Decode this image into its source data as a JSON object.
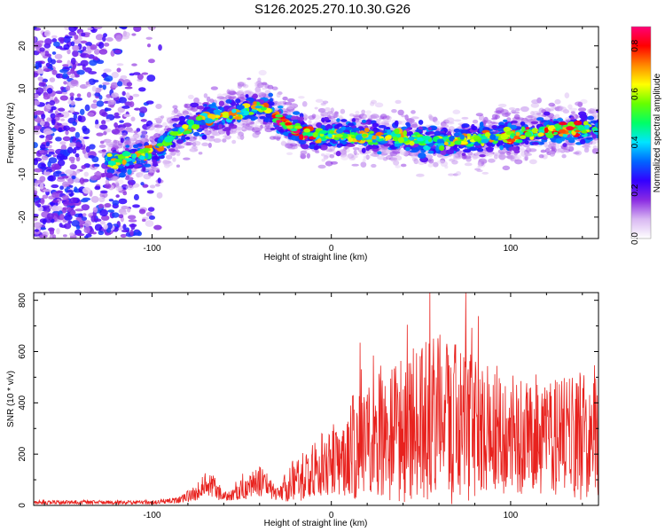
{
  "title": "S126.2025.270.10.30.G26",
  "colors": {
    "snr_line": "#e8221e",
    "axis": "#000000",
    "background": "#ffffff"
  },
  "chart_data": [
    {
      "type": "heatmap",
      "title": "",
      "xlabel": "Height of straight line (km)",
      "ylabel": "Frequency (Hz)",
      "xlim": [
        -166,
        149
      ],
      "ylim": [
        -25,
        24.5
      ],
      "x_ticks": [
        -100,
        0,
        100
      ],
      "x_tick_labels": [
        "-100",
        "0",
        "100"
      ],
      "y_ticks": [
        -20,
        -10,
        0,
        10,
        20
      ],
      "y_tick_labels": [
        "-20",
        "-10",
        "0",
        "10",
        "20"
      ],
      "ridge": {
        "description_points_x": [
          -120,
          -100,
          -85,
          -70,
          -55,
          -40,
          -35,
          -30,
          -20,
          -10,
          0,
          20,
          40,
          60,
          80,
          100,
          120,
          140,
          149
        ],
        "description_points_y": [
          -7,
          -5,
          0,
          3,
          4,
          6,
          5,
          3,
          0.5,
          -1,
          -0.5,
          -1,
          -1.5,
          -2.5,
          -2,
          -1,
          0,
          0.5,
          0.8
        ]
      },
      "noise_region_x": [
        -166,
        -95
      ],
      "colorbar": {
        "label": "Normalized spectral amplitude",
        "range": [
          0.0,
          0.88
        ],
        "ticks": [
          0.0,
          0.2,
          0.4,
          0.6,
          0.8
        ],
        "tick_labels": [
          "0.0",
          "0.2",
          "0.4",
          "0.6",
          "0.8"
        ],
        "colors": [
          "#ffffff",
          "#d9b8f2",
          "#8a2be2",
          "#3300ff",
          "#0066ff",
          "#00e5ff",
          "#00ff66",
          "#66ff00",
          "#ffff00",
          "#ff8800",
          "#ff0000",
          "#ff0077"
        ]
      }
    },
    {
      "type": "line",
      "title": "",
      "xlabel": "Height of straight line (km)",
      "ylabel": "SNR (10 * v/v)",
      "xlim": [
        -166,
        149
      ],
      "ylim": [
        0,
        830
      ],
      "x_ticks": [
        -100,
        0,
        100
      ],
      "x_tick_labels": [
        "-100",
        "0",
        "100"
      ],
      "y_ticks": [
        0,
        200,
        400,
        600,
        800
      ],
      "y_tick_labels": [
        "0",
        "200",
        "400",
        "600",
        "800"
      ],
      "series": [
        {
          "name": "SNR",
          "envelope_x": [
            -166,
            -100,
            -85,
            -75,
            -70,
            -65,
            -60,
            -55,
            -45,
            -40,
            -35,
            -30,
            -25,
            -20,
            -10,
            0,
            10,
            20,
            30,
            40,
            50,
            60,
            70,
            80,
            90,
            100,
            110,
            120,
            130,
            140,
            149
          ],
          "envelope_mean": [
            12,
            12,
            20,
            50,
            80,
            70,
            30,
            40,
            80,
            100,
            70,
            40,
            80,
            100,
            140,
            180,
            220,
            260,
            280,
            300,
            320,
            330,
            320,
            300,
            300,
            280,
            260,
            260,
            270,
            280,
            320
          ],
          "envelope_spread": [
            6,
            6,
            10,
            25,
            40,
            35,
            15,
            20,
            40,
            50,
            35,
            20,
            50,
            70,
            90,
            110,
            150,
            180,
            200,
            220,
            240,
            260,
            240,
            220,
            200,
            180,
            170,
            170,
            180,
            200,
            220
          ],
          "peak_value": 830,
          "peak_x": 55
        }
      ]
    }
  ]
}
